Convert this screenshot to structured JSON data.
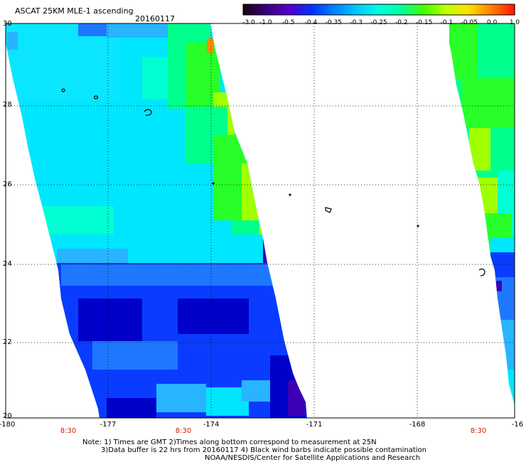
{
  "header": {
    "title": "ASCAT 25KM MLE-1 ascending",
    "date": "20160117"
  },
  "colorbar": {
    "labels": [
      "-3.0",
      "-1.0",
      "-0.5",
      "-0.4",
      "-0.35",
      "-0.3",
      "-0.25",
      "-0.2",
      "-0.15",
      "-0.1",
      "-0.05",
      "0.0",
      "1.0"
    ],
    "colors": [
      "#1a0010",
      "#3a0080",
      "#5500cc",
      "#0030ff",
      "#0080ff",
      "#00c8ff",
      "#00ffe0",
      "#00ffa0",
      "#40ff00",
      "#c0ff00",
      "#ffe000",
      "#ff8000",
      "#ff1a00"
    ]
  },
  "axes": {
    "lat_labels": [
      "30",
      "28",
      "26",
      "24",
      "22",
      "20"
    ],
    "lon_labels": [
      "-180",
      "-177",
      "-174",
      "-171",
      "-168",
      "-16"
    ],
    "time_labels": [
      "8:30",
      "8:30",
      "8:30"
    ]
  },
  "notes": {
    "line1": "Note: 1) Times are GMT 2)Times along bottom correspond to measurement at 25N",
    "line2": "3)Data buffer is 22 hrs from 20160117 4) Black wind barbs indicate possible contamination",
    "line3": "NOAA/NESDIS/Center for Satellite Applications and Research"
  },
  "palette": {
    "deep_blue": "#0000c8",
    "blue": "#0a3cff",
    "mid_blue": "#1e78ff",
    "sky": "#28b4ff",
    "cyan": "#00e6ff",
    "aqua": "#00ffd2",
    "mint": "#00ff8c",
    "green": "#28ff28",
    "lime": "#a0ff00",
    "yellow": "#f0f000",
    "orange": "#ff8c00",
    "violet": "#3c00b4"
  }
}
